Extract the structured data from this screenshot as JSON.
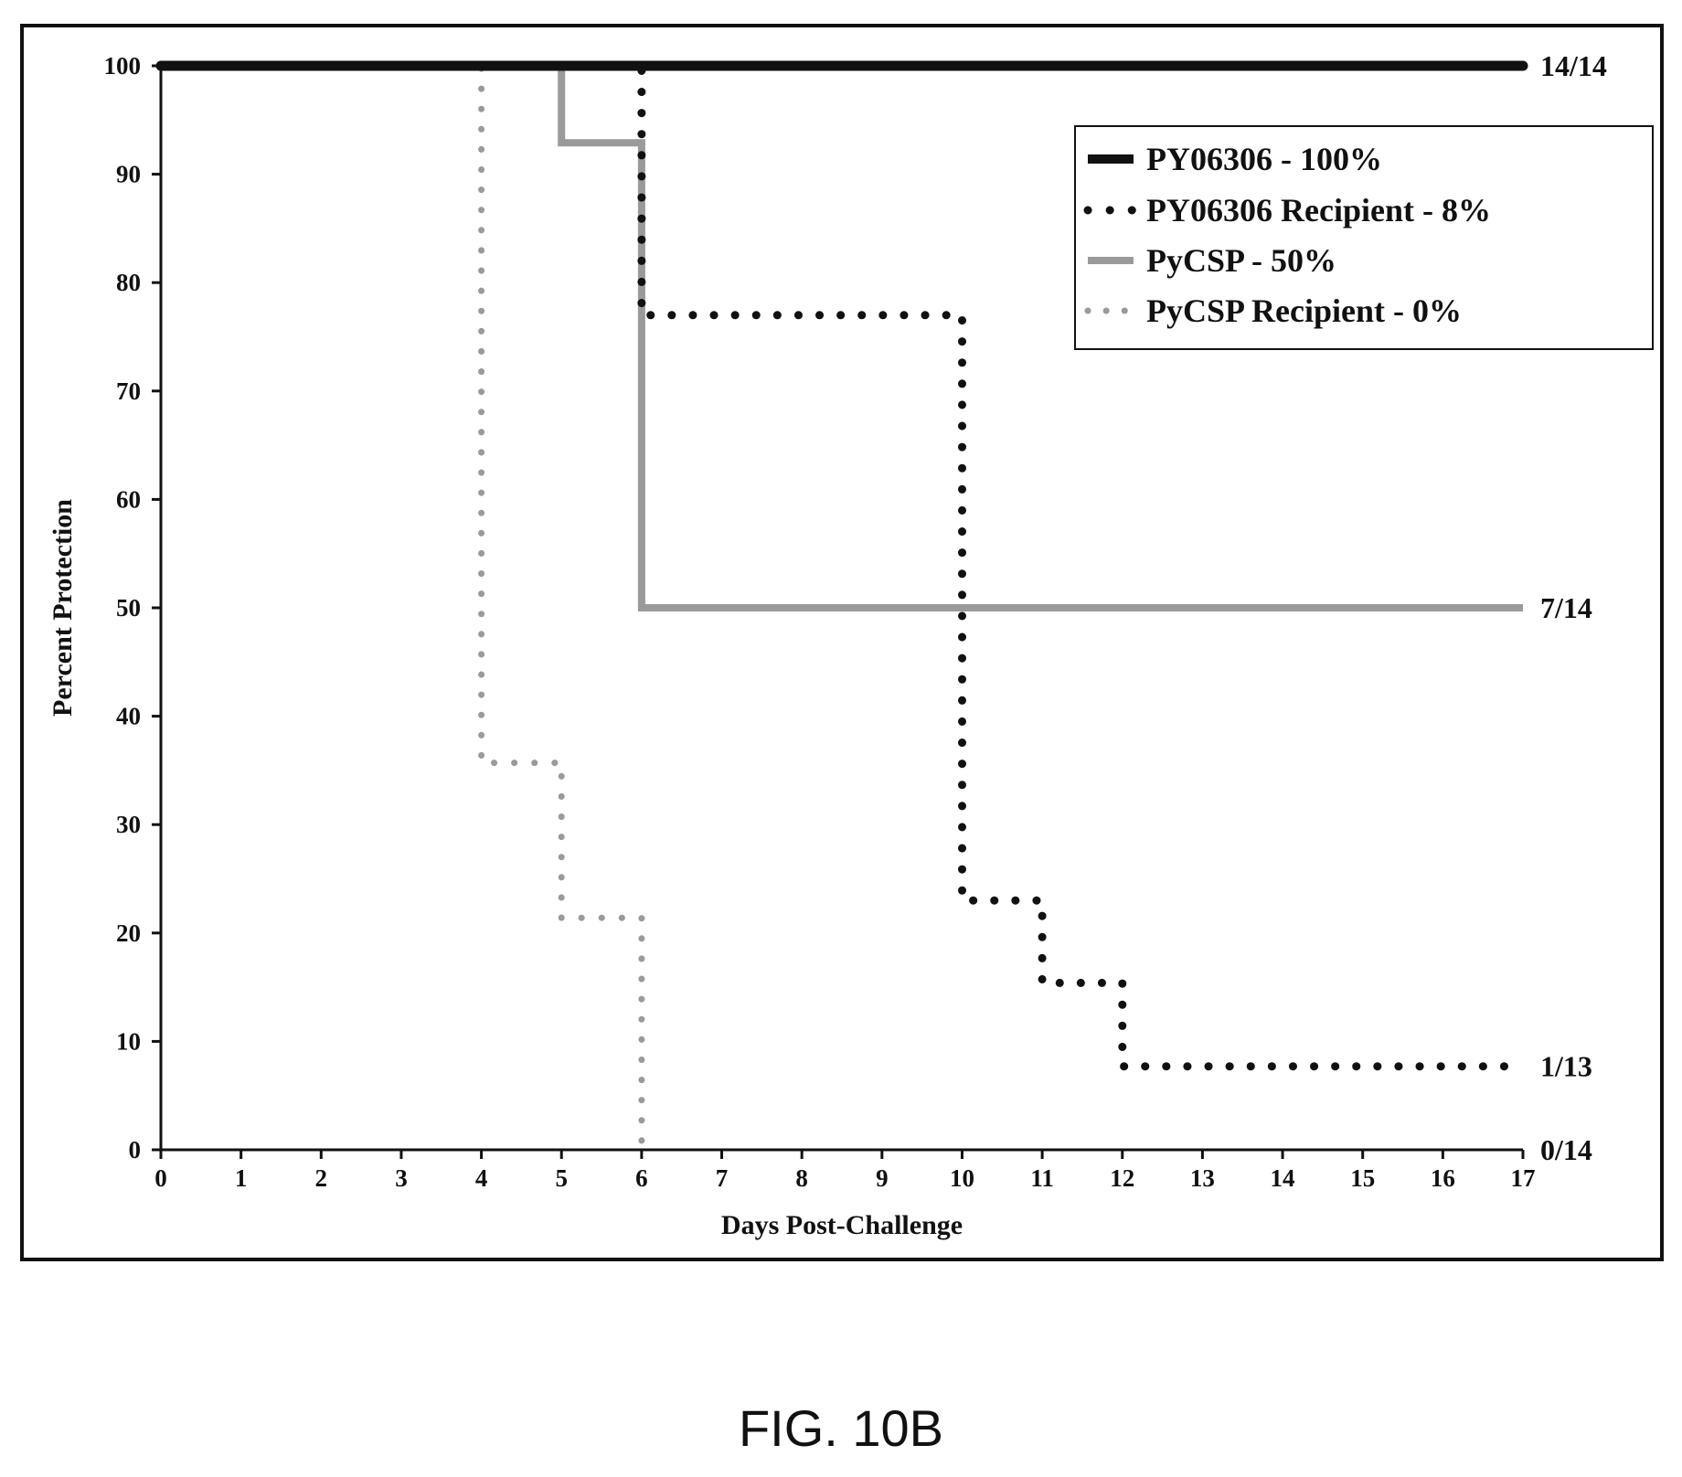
{
  "chart_data": {
    "type": "line",
    "subtype": "kaplan-meier step",
    "title": "",
    "xlabel": "Days Post-Challenge",
    "ylabel": "Percent Protection",
    "xlim": [
      0,
      17
    ],
    "ylim": [
      0,
      100
    ],
    "x_ticks": [
      0,
      1,
      2,
      3,
      4,
      5,
      6,
      7,
      8,
      9,
      10,
      11,
      12,
      13,
      14,
      15,
      16,
      17
    ],
    "y_ticks": [
      0,
      10,
      20,
      30,
      40,
      50,
      60,
      70,
      80,
      90,
      100
    ],
    "grid": false,
    "legend_position": "top-right",
    "series": [
      {
        "name": "PY06306 - 100%",
        "style": "solid-thick",
        "color": "#111111",
        "points": [
          [
            0,
            100
          ],
          [
            17,
            100
          ]
        ],
        "end_label": "14/14"
      },
      {
        "name": "PY06306 Recipient - 8%",
        "style": "dotted",
        "color": "#111111",
        "points": [
          [
            0,
            100
          ],
          [
            6,
            100
          ],
          [
            6,
            77
          ],
          [
            10,
            77
          ],
          [
            10,
            23
          ],
          [
            11,
            23
          ],
          [
            11,
            15.4
          ],
          [
            12,
            15.4
          ],
          [
            12,
            7.7
          ],
          [
            17,
            7.7
          ]
        ],
        "end_label": "1/13"
      },
      {
        "name": "PyCSP - 50%",
        "style": "solid-gray",
        "color": "#9a9a9a",
        "points": [
          [
            0,
            100
          ],
          [
            5,
            100
          ],
          [
            5,
            92.9
          ],
          [
            6,
            92.9
          ],
          [
            6,
            50
          ],
          [
            17,
            50
          ]
        ],
        "end_label": "7/14"
      },
      {
        "name": "PyCSP Recipient - 0%",
        "style": "dotted-gray",
        "color": "#9a9a9a",
        "points": [
          [
            0,
            100
          ],
          [
            4,
            100
          ],
          [
            4,
            35.7
          ],
          [
            5,
            35.7
          ],
          [
            5,
            21.4
          ],
          [
            6,
            21.4
          ],
          [
            6,
            0
          ]
        ],
        "end_label": "0/14"
      }
    ]
  },
  "caption": "FIG. 10B"
}
